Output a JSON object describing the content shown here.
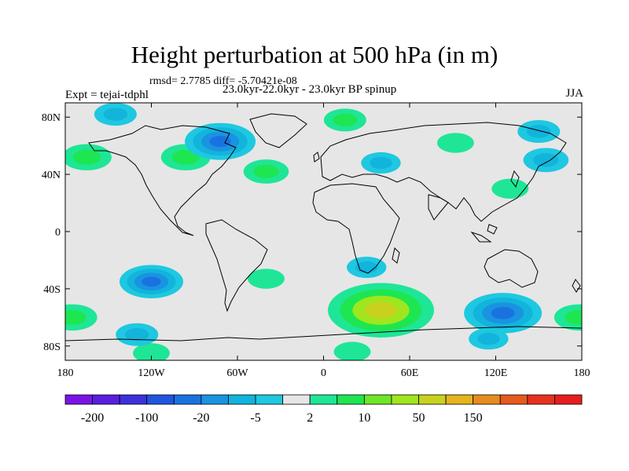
{
  "chart_data": {
    "type": "heatmap",
    "title": "Height perturbation at 500 hPa (in m)",
    "stats_line": "rmsd= 2.7785 diff= -5.70421e-08",
    "experiment": "Expt = tejai-tdphl",
    "subtitle": "23.0kyr-22.0kyr - 23.0kyr BP spinup",
    "season": "JJA",
    "map": "world, cylindrical equidistant",
    "lon_range": [
      -180,
      180
    ],
    "lat_range": [
      -90,
      90
    ],
    "x_ticks": [
      {
        "value": -180,
        "label": "180"
      },
      {
        "value": -120,
        "label": "120W"
      },
      {
        "value": -60,
        "label": "60W"
      },
      {
        "value": 0,
        "label": "0"
      },
      {
        "value": 60,
        "label": "60E"
      },
      {
        "value": 120,
        "label": "120E"
      },
      {
        "value": 180,
        "label": "180"
      }
    ],
    "y_ticks": [
      {
        "value": 80,
        "label": "80N"
      },
      {
        "value": 40,
        "label": "40N"
      },
      {
        "value": 0,
        "label": "0"
      },
      {
        "value": -40,
        "label": "40S"
      },
      {
        "value": -80,
        "label": "80S"
      }
    ],
    "colorbar": {
      "boxes": [
        "#7a14e6",
        "#5a1ee0",
        "#3c32dc",
        "#1f55e0",
        "#1a72e0",
        "#1a93e0",
        "#12b4dc",
        "#1ec8e0",
        "#e6e6e6",
        "#1ee696",
        "#1ee650",
        "#6ee628",
        "#a0e61e",
        "#c8d21e",
        "#e6b41e",
        "#e68c1e",
        "#e65a1e",
        "#e6321e",
        "#e61e1e"
      ],
      "labels": [
        "-200",
        "-100",
        "-20",
        "-5",
        "2",
        "10",
        "50",
        "150"
      ]
    },
    "anomalies": [
      {
        "lon": -165,
        "lat": 52,
        "level": 10,
        "value": 15
      },
      {
        "lon": -96,
        "lat": 52,
        "level": 10,
        "value": 15
      },
      {
        "lon": -40,
        "lat": 42,
        "level": 10,
        "value": 12
      },
      {
        "lon": 15,
        "lat": 78,
        "level": 10,
        "value": 10
      },
      {
        "lon": 92,
        "lat": 62,
        "level": 2,
        "value": 5
      },
      {
        "lon": 130,
        "lat": 30,
        "level": 2,
        "value": 4
      },
      {
        "lon": -40,
        "lat": -33,
        "level": 2,
        "value": 3
      },
      {
        "lon": 40,
        "lat": -55,
        "level": 50,
        "value": 55
      },
      {
        "lon": -175,
        "lat": -60,
        "level": 10,
        "value": 15
      },
      {
        "lon": 178,
        "lat": -60,
        "level": 10,
        "value": 15
      },
      {
        "lon": -120,
        "lat": -85,
        "level": 2,
        "value": 5
      },
      {
        "lon": 20,
        "lat": -84,
        "level": 2,
        "value": 5
      },
      {
        "lon": -72,
        "lat": 63,
        "level": -20,
        "value": -30
      },
      {
        "lon": -120,
        "lat": -35,
        "level": -20,
        "value": -25
      },
      {
        "lon": 125,
        "lat": -57,
        "level": -20,
        "value": -35
      },
      {
        "lon": -145,
        "lat": 82,
        "level": -5,
        "value": -10
      },
      {
        "lon": 40,
        "lat": 48,
        "level": -5,
        "value": -8
      },
      {
        "lon": 150,
        "lat": 70,
        "level": -5,
        "value": -10
      },
      {
        "lon": 155,
        "lat": 50,
        "level": -5,
        "value": -12
      },
      {
        "lon": 30,
        "lat": -25,
        "level": -5,
        "value": -8
      },
      {
        "lon": -130,
        "lat": -72,
        "level": -5,
        "value": -10
      },
      {
        "lon": 115,
        "lat": -75,
        "level": -5,
        "value": -8
      }
    ]
  }
}
